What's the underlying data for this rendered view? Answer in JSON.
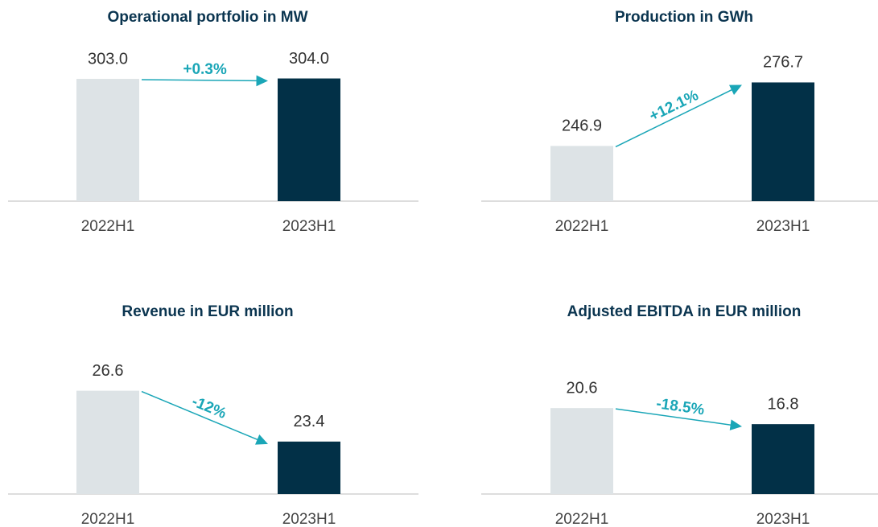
{
  "chart_data": [
    {
      "type": "bar",
      "title": "Operational portfolio in MW",
      "categories": [
        "2022H1",
        "2023H1"
      ],
      "values": [
        303.0,
        304.0
      ],
      "value_labels": [
        "303.0",
        "304.0"
      ],
      "colors": [
        "#dde3e6",
        "#023047"
      ],
      "ylim": [
        0,
        319
      ],
      "annotation": "+0.3%",
      "annotation_color": "#1aa6b7"
    },
    {
      "type": "bar",
      "title": "Production in GWh",
      "categories": [
        "2022H1",
        "2023H1"
      ],
      "values": [
        246.9,
        276.7
      ],
      "colors": [
        "#dde3e6",
        "#023047"
      ],
      "ylim": [
        221,
        281.4
      ],
      "annotation": "+12.1%",
      "annotation_color": "#1aa6b7"
    },
    {
      "type": "bar",
      "title": "Revenue in EUR million",
      "categories": [
        "2022H1",
        "2023H1"
      ],
      "values": [
        26.6,
        23.4
      ],
      "colors": [
        "#dde3e6",
        "#023047"
      ],
      "ylim": [
        20.1,
        28.2
      ],
      "annotation": "-12%",
      "annotation_color": "#1aa6b7"
    },
    {
      "type": "bar",
      "title": "Adjusted EBITDA in EUR million",
      "categories": [
        "2022H1",
        "2023H1"
      ],
      "values": [
        20.6,
        16.8
      ],
      "colors": [
        "#dde3e6",
        "#023047"
      ],
      "ylim": [
        0.3,
        30.7
      ],
      "annotation": "-18.5%",
      "annotation_color": "#1aa6b7"
    }
  ]
}
